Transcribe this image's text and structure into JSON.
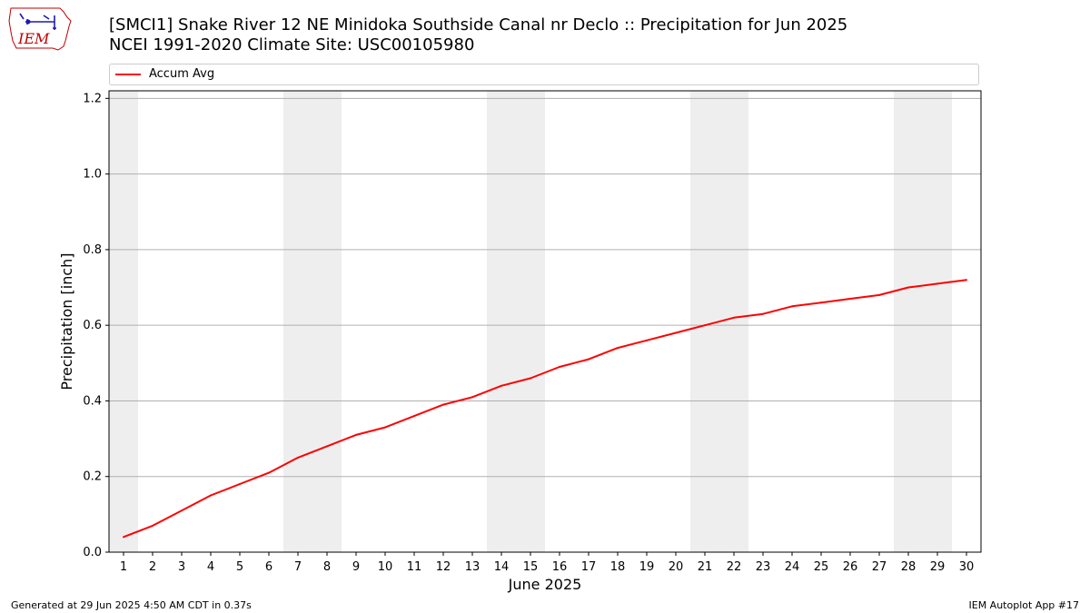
{
  "logo": {
    "text": "IEM"
  },
  "header": {
    "title_line1": "[SMCI1] Snake River 12 NE Minidoka Southside Canal nr Declo :: Precipitation for Jun 2025",
    "title_line2": "NCEI 1991-2020 Climate Site: USC00105980"
  },
  "chart_data": {
    "type": "line",
    "title": "[SMCI1] Snake River 12 NE Minidoka Southside Canal nr Declo :: Precipitation for Jun 2025",
    "subtitle": "NCEI 1991-2020 Climate Site: USC00105980",
    "xlabel": "June 2025",
    "ylabel": "Precipitation [inch]",
    "x": [
      1,
      2,
      3,
      4,
      5,
      6,
      7,
      8,
      9,
      10,
      11,
      12,
      13,
      14,
      15,
      16,
      17,
      18,
      19,
      20,
      21,
      22,
      23,
      24,
      25,
      26,
      27,
      28,
      29,
      30
    ],
    "xlim": [
      0.5,
      30.5
    ],
    "ylim": [
      0,
      1.22
    ],
    "yticks": [
      0.0,
      0.2,
      0.4,
      0.6,
      0.8,
      1.0,
      1.2
    ],
    "ytick_labels": [
      "0.0",
      "0.2",
      "0.4",
      "0.6",
      "0.8",
      "1.0",
      "1.2"
    ],
    "grid": "horizontal",
    "legend_position": "top",
    "weekend_shading_days": [
      1,
      7,
      8,
      14,
      15,
      21,
      22,
      28,
      29
    ],
    "series": [
      {
        "name": "Accum Avg",
        "color": "#ff0000",
        "values": [
          0.04,
          0.07,
          0.11,
          0.15,
          0.18,
          0.21,
          0.25,
          0.28,
          0.31,
          0.33,
          0.36,
          0.39,
          0.41,
          0.44,
          0.46,
          0.49,
          0.51,
          0.54,
          0.56,
          0.58,
          0.6,
          0.62,
          0.63,
          0.65,
          0.66,
          0.67,
          0.68,
          0.7,
          0.71,
          0.72
        ]
      }
    ]
  },
  "footer": {
    "left": "Generated at 29 Jun 2025 4:50 AM CDT in 0.37s",
    "right": "IEM Autoplot App #17"
  }
}
